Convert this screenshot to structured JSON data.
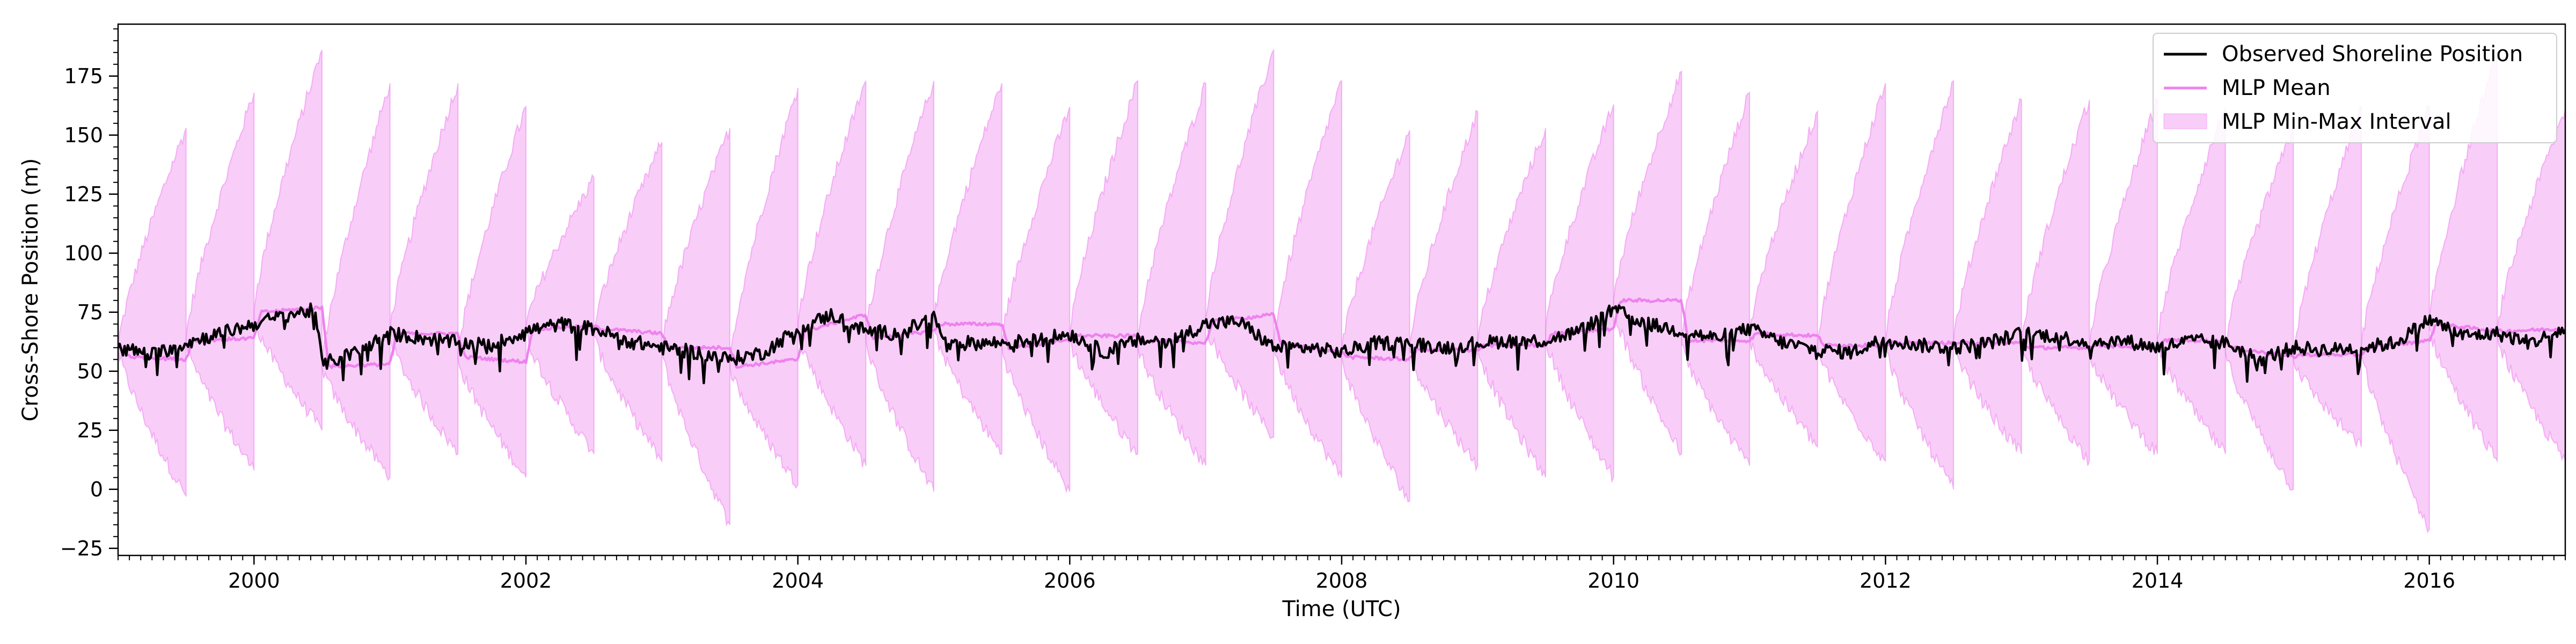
{
  "chart_data": {
    "type": "line",
    "title": "",
    "xlabel": "Time (UTC)",
    "ylabel": "Cross-Shore Position (m)",
    "xlim": [
      1999.0,
      2017.0
    ],
    "ylim": [
      -28,
      197
    ],
    "grid": false,
    "legend_position": "top-right",
    "x_ticks": [
      2000,
      2002,
      2004,
      2006,
      2008,
      2010,
      2012,
      2014,
      2016
    ],
    "x_tick_labels": [
      "2000",
      "2002",
      "2004",
      "2006",
      "2008",
      "2010",
      "2012",
      "2014",
      "2016"
    ],
    "y_ticks": [
      -25,
      0,
      25,
      50,
      75,
      100,
      125,
      150,
      175
    ],
    "y_tick_labels": [
      "−25",
      "0",
      "25",
      "50",
      "75",
      "100",
      "125",
      "150",
      "175"
    ],
    "interval_window_years": 0.5,
    "colors": {
      "observed": "#000000",
      "mean": "#ee82ee",
      "band_fill": "#ee82ee",
      "band_fill_opacity": 0.4
    },
    "series": [
      {
        "name": "Observed Shoreline Position",
        "kind": "line",
        "x": [
          1999.0,
          1999.25,
          1999.5,
          1999.75,
          2000.0,
          2000.25,
          2000.45,
          2000.5,
          2000.75,
          2001.0,
          2001.25,
          2001.5,
          2001.75,
          2002.0,
          2002.25,
          2002.5,
          2002.75,
          2003.0,
          2003.25,
          2003.5,
          2003.75,
          2004.0,
          2004.25,
          2004.5,
          2004.75,
          2005.0,
          2005.1,
          2005.25,
          2005.5,
          2005.75,
          2006.0,
          2006.25,
          2006.5,
          2006.75,
          2007.0,
          2007.25,
          2007.5,
          2007.75,
          2008.0,
          2008.25,
          2008.5,
          2008.75,
          2009.0,
          2009.25,
          2009.5,
          2009.75,
          2010.0,
          2010.25,
          2010.5,
          2010.75,
          2011.0,
          2011.25,
          2011.5,
          2011.75,
          2012.0,
          2012.25,
          2012.5,
          2012.75,
          2013.0,
          2013.25,
          2013.5,
          2013.75,
          2014.0,
          2014.25,
          2014.5,
          2014.75,
          2015.0,
          2015.25,
          2015.5,
          2015.75,
          2016.0,
          2016.25,
          2016.5,
          2016.75,
          2017.0
        ],
        "y": [
          60,
          57,
          62,
          66,
          70,
          74,
          76,
          53,
          58,
          66,
          64,
          62,
          61,
          67,
          70,
          68,
          63,
          60,
          58,
          55,
          58,
          68,
          74,
          67,
          66,
          73,
          60,
          62,
          62,
          63,
          66,
          58,
          63,
          63,
          70,
          71,
          60,
          60,
          58,
          62,
          62,
          60,
          62,
          63,
          63,
          67,
          76,
          70,
          67,
          64,
          68,
          62,
          59,
          58,
          64,
          61,
          60,
          62,
          66,
          65,
          62,
          63,
          60,
          63,
          62,
          55,
          60,
          59,
          60,
          62,
          72,
          65,
          66,
          62,
          68
        ]
      },
      {
        "name": "MLP Mean",
        "kind": "line",
        "x": [
          1999.0,
          1999.1,
          1999.5,
          1999.55,
          2000.0,
          2000.05,
          2000.5,
          2000.55,
          2001.0,
          2001.05,
          2001.5,
          2001.55,
          2002.0,
          2002.05,
          2002.5,
          2002.55,
          2003.0,
          2003.05,
          2003.5,
          2003.55,
          2004.0,
          2004.05,
          2004.5,
          2004.55,
          2005.0,
          2005.05,
          2005.5,
          2005.55,
          2006.0,
          2006.05,
          2006.5,
          2006.55,
          2007.0,
          2007.05,
          2007.5,
          2007.55,
          2008.0,
          2008.05,
          2008.5,
          2008.55,
          2009.0,
          2009.05,
          2009.5,
          2009.55,
          2010.0,
          2010.05,
          2010.5,
          2010.55,
          2011.0,
          2011.05,
          2011.5,
          2011.55,
          2012.0,
          2012.05,
          2012.5,
          2012.55,
          2013.0,
          2013.05,
          2013.5,
          2013.55,
          2014.0,
          2014.05,
          2014.5,
          2014.55,
          2015.0,
          2015.05,
          2015.5,
          2015.55,
          2016.0,
          2016.05,
          2016.5,
          2016.55,
          2017.0
        ],
        "y": [
          60,
          56,
          55,
          63,
          64,
          75,
          77,
          52,
          53,
          66,
          66,
          56,
          54,
          68,
          69,
          68,
          66,
          60,
          60,
          52,
          55,
          67,
          74,
          64,
          67,
          70,
          70,
          60,
          63,
          65,
          65,
          63,
          62,
          71,
          74,
          62,
          58,
          56,
          55,
          59,
          59,
          61,
          61,
          66,
          68,
          80,
          80,
          63,
          63,
          66,
          65,
          61,
          61,
          62,
          62,
          62,
          62,
          60,
          60,
          61,
          60,
          63,
          63,
          60,
          56,
          57,
          57,
          60,
          63,
          70,
          67,
          67,
          68
        ]
      },
      {
        "name": "MLP Min-Max Interval",
        "kind": "band",
        "segments": [
          {
            "start": 1999.0,
            "end": 1999.5,
            "lower_start": 59,
            "lower_end": -3,
            "upper_start": 61,
            "upper_end": 153
          },
          {
            "start": 1999.5,
            "end": 2000.0,
            "lower_start": 62,
            "lower_end": 8,
            "upper_start": 64,
            "upper_end": 168
          },
          {
            "start": 2000.0,
            "end": 2000.5,
            "lower_start": 72,
            "lower_end": 25,
            "upper_start": 76,
            "upper_end": 186
          },
          {
            "start": 2000.5,
            "end": 2001.0,
            "lower_start": 52,
            "lower_end": 5,
            "upper_start": 54,
            "upper_end": 172
          },
          {
            "start": 2001.0,
            "end": 2001.5,
            "lower_start": 64,
            "lower_end": 15,
            "upper_start": 67,
            "upper_end": 172
          },
          {
            "start": 2001.5,
            "end": 2002.0,
            "lower_start": 55,
            "lower_end": 5,
            "upper_start": 58,
            "upper_end": 162
          },
          {
            "start": 2002.0,
            "end": 2002.5,
            "lower_start": 66,
            "lower_end": 15,
            "upper_start": 69,
            "upper_end": 132
          },
          {
            "start": 2002.5,
            "end": 2003.0,
            "lower_start": 65,
            "lower_end": 12,
            "upper_start": 68,
            "upper_end": 147
          },
          {
            "start": 2003.0,
            "end": 2003.5,
            "lower_start": 58,
            "lower_end": -15,
            "upper_start": 61,
            "upper_end": 153
          },
          {
            "start": 2003.5,
            "end": 2004.0,
            "lower_start": 52,
            "lower_end": 2,
            "upper_start": 55,
            "upper_end": 170
          },
          {
            "start": 2004.0,
            "end": 2004.5,
            "lower_start": 67,
            "lower_end": 10,
            "upper_start": 70,
            "upper_end": 173
          },
          {
            "start": 2004.5,
            "end": 2005.0,
            "lower_start": 63,
            "lower_end": -1,
            "upper_start": 66,
            "upper_end": 173
          },
          {
            "start": 2005.0,
            "end": 2005.5,
            "lower_start": 68,
            "lower_end": 15,
            "upper_start": 71,
            "upper_end": 172
          },
          {
            "start": 2005.5,
            "end": 2006.0,
            "lower_start": 60,
            "lower_end": -1,
            "upper_start": 63,
            "upper_end": 162
          },
          {
            "start": 2006.0,
            "end": 2006.5,
            "lower_start": 63,
            "lower_end": 15,
            "upper_start": 66,
            "upper_end": 173
          },
          {
            "start": 2006.5,
            "end": 2007.0,
            "lower_start": 61,
            "lower_end": 10,
            "upper_start": 64,
            "upper_end": 172
          },
          {
            "start": 2007.0,
            "end": 2007.5,
            "lower_start": 70,
            "lower_end": 22,
            "upper_start": 73,
            "upper_end": 186
          },
          {
            "start": 2007.5,
            "end": 2008.0,
            "lower_start": 60,
            "lower_end": 5,
            "upper_start": 63,
            "upper_end": 173
          },
          {
            "start": 2008.0,
            "end": 2008.5,
            "lower_start": 56,
            "lower_end": -5,
            "upper_start": 59,
            "upper_end": 152
          },
          {
            "start": 2008.5,
            "end": 2009.0,
            "lower_start": 58,
            "lower_end": 10,
            "upper_start": 61,
            "upper_end": 160
          },
          {
            "start": 2009.0,
            "end": 2009.5,
            "lower_start": 60,
            "lower_end": 5,
            "upper_start": 63,
            "upper_end": 153
          },
          {
            "start": 2009.5,
            "end": 2010.0,
            "lower_start": 64,
            "lower_end": 5,
            "upper_start": 68,
            "upper_end": 163
          },
          {
            "start": 2010.0,
            "end": 2010.5,
            "lower_start": 77,
            "lower_end": 15,
            "upper_start": 80,
            "upper_end": 177
          },
          {
            "start": 2010.5,
            "end": 2011.0,
            "lower_start": 61,
            "lower_end": 10,
            "upper_start": 64,
            "upper_end": 168
          },
          {
            "start": 2011.0,
            "end": 2011.5,
            "lower_start": 64,
            "lower_end": 18,
            "upper_start": 67,
            "upper_end": 160
          },
          {
            "start": 2011.5,
            "end": 2012.0,
            "lower_start": 59,
            "lower_end": 12,
            "upper_start": 62,
            "upper_end": 172
          },
          {
            "start": 2012.0,
            "end": 2012.5,
            "lower_start": 60,
            "lower_end": 0,
            "upper_start": 63,
            "upper_end": 173
          },
          {
            "start": 2012.5,
            "end": 2013.0,
            "lower_start": 60,
            "lower_end": 15,
            "upper_start": 63,
            "upper_end": 165
          },
          {
            "start": 2013.0,
            "end": 2013.5,
            "lower_start": 60,
            "lower_end": 12,
            "upper_start": 63,
            "upper_end": 165
          },
          {
            "start": 2013.5,
            "end": 2014.0,
            "lower_start": 58,
            "lower_end": 15,
            "upper_start": 61,
            "upper_end": 165
          },
          {
            "start": 2014.0,
            "end": 2014.5,
            "lower_start": 61,
            "lower_end": 15,
            "upper_start": 64,
            "upper_end": 162
          },
          {
            "start": 2014.5,
            "end": 2015.0,
            "lower_start": 58,
            "lower_end": 0,
            "upper_start": 61,
            "upper_end": 153
          },
          {
            "start": 2015.0,
            "end": 2015.5,
            "lower_start": 55,
            "lower_end": 18,
            "upper_start": 58,
            "upper_end": 162
          },
          {
            "start": 2015.5,
            "end": 2016.0,
            "lower_start": 58,
            "lower_end": -17,
            "upper_start": 61,
            "upper_end": 162
          },
          {
            "start": 2016.0,
            "end": 2016.5,
            "lower_start": 68,
            "lower_end": 12,
            "upper_start": 71,
            "upper_end": 185
          },
          {
            "start": 2016.5,
            "end": 2017.0,
            "lower_start": 65,
            "lower_end": 12,
            "upper_start": 68,
            "upper_end": 161
          }
        ]
      }
    ]
  }
}
